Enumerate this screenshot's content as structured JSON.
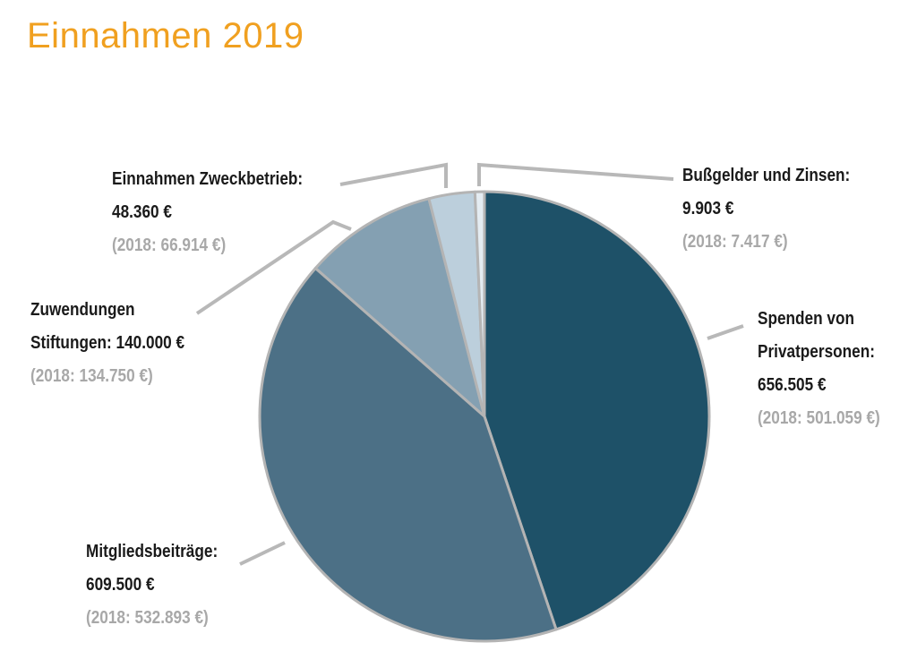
{
  "title": "Einnahmen 2019",
  "chart_data": {
    "type": "pie",
    "title": "Einnahmen 2019",
    "slices": [
      {
        "name": "Spenden von Privatpersonen",
        "value": 656505,
        "value_label": "656.505 €",
        "prev_label": "(2018: 501.059 €)",
        "color": "#1e5168"
      },
      {
        "name": "Mitgliedsbeiträge",
        "value": 609500,
        "value_label": "609.500 €",
        "prev_label": "(2018: 532.893 €)",
        "color": "#4c7086"
      },
      {
        "name": "Zuwendungen Stiftungen",
        "value": 140000,
        "value_label": "140.000 €",
        "prev_label": "(2018: 134.750 €)",
        "color": "#84a0b2"
      },
      {
        "name": "Einnahmen Zweckbetrieb",
        "value": 48360,
        "value_label": "48.360 €",
        "prev_label": "(2018: 66.914 €)",
        "color": "#bccfdc"
      },
      {
        "name": "Bußgelder und Zinsen",
        "value": 9903,
        "value_label": "9.903 €",
        "prev_label": "(2018: 7.417 €)",
        "color": "#e4ecf2"
      }
    ],
    "start_angle": "12 o'clock",
    "direction": "clockwise",
    "legend": "none"
  },
  "labels": {
    "spenden": {
      "line1": "Spenden von",
      "line2": "Privatpersonen:",
      "line3": "656.505 €",
      "line4": "(2018: 501.059 €)"
    },
    "mitglieder": {
      "line1": "Mitgliedsbeiträge:",
      "line2": "609.500 €",
      "line3": "(2018: 532.893 €)"
    },
    "stiftungen": {
      "line1": "Zuwendungen",
      "line2": "Stiftungen: 140.000 €",
      "line3": "(2018: 134.750 €)"
    },
    "zweckbetrieb": {
      "line1": "Einnahmen Zweckbetrieb:",
      "line2": "48.360 €",
      "line3": "(2018: 66.914 €)"
    },
    "bussgelder": {
      "line1": "Bußgelder und Zinsen:",
      "line2": "9.903 €",
      "line3": "(2018: 7.417 €)"
    }
  }
}
